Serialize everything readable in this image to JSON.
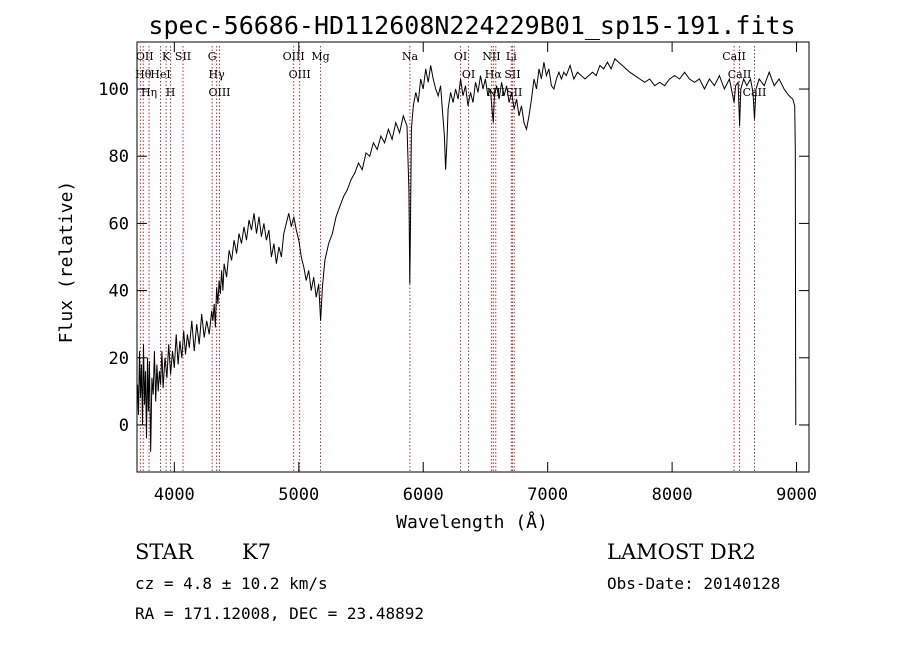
{
  "chart_data": {
    "type": "line",
    "title": "spec-56686-HD112608N224229B01_sp15-191.fits",
    "xlabel": "Wavelength (Å)",
    "ylabel": "Flux (relative)",
    "xlim": [
      3700,
      9100
    ],
    "ylim": [
      -14,
      114
    ],
    "xticks": [
      4000,
      5000,
      6000,
      7000,
      8000,
      9000
    ],
    "yticks": [
      0,
      20,
      40,
      60,
      80,
      100
    ],
    "line_color": "#000000",
    "marker_color": "#b03030",
    "series": [
      {
        "points": [
          [
            3705,
            12
          ],
          [
            3712,
            3
          ],
          [
            3720,
            22
          ],
          [
            3728,
            8
          ],
          [
            3736,
            18
          ],
          [
            3744,
            0
          ],
          [
            3752,
            24
          ],
          [
            3760,
            6
          ],
          [
            3768,
            16
          ],
          [
            3776,
            -4
          ],
          [
            3784,
            20
          ],
          [
            3792,
            4
          ],
          [
            3800,
            19
          ],
          [
            3810,
            -8
          ],
          [
            3820,
            14
          ],
          [
            3830,
            9
          ],
          [
            3840,
            22
          ],
          [
            3850,
            7
          ],
          [
            3860,
            18
          ],
          [
            3870,
            10
          ],
          [
            3880,
            16
          ],
          [
            3890,
            12
          ],
          [
            3900,
            22
          ],
          [
            3910,
            11
          ],
          [
            3925,
            20
          ],
          [
            3940,
            14
          ],
          [
            3955,
            24
          ],
          [
            3970,
            15
          ],
          [
            3985,
            22
          ],
          [
            4000,
            17
          ],
          [
            4015,
            27
          ],
          [
            4030,
            18
          ],
          [
            4045,
            25
          ],
          [
            4060,
            20
          ],
          [
            4075,
            28
          ],
          [
            4090,
            21
          ],
          [
            4105,
            27
          ],
          [
            4120,
            23
          ],
          [
            4140,
            31
          ],
          [
            4160,
            22
          ],
          [
            4180,
            30
          ],
          [
            4200,
            24
          ],
          [
            4220,
            33
          ],
          [
            4240,
            26
          ],
          [
            4260,
            31
          ],
          [
            4280,
            27
          ],
          [
            4300,
            34
          ],
          [
            4310,
            31
          ],
          [
            4320,
            36
          ],
          [
            4330,
            29
          ],
          [
            4340,
            41
          ],
          [
            4350,
            36
          ],
          [
            4360,
            43
          ],
          [
            4370,
            39
          ],
          [
            4380,
            46
          ],
          [
            4390,
            40
          ],
          [
            4400,
            48
          ],
          [
            4420,
            44
          ],
          [
            4440,
            52
          ],
          [
            4460,
            49
          ],
          [
            4480,
            55
          ],
          [
            4500,
            51
          ],
          [
            4520,
            57
          ],
          [
            4540,
            54
          ],
          [
            4560,
            59
          ],
          [
            4580,
            55
          ],
          [
            4600,
            61
          ],
          [
            4620,
            58
          ],
          [
            4640,
            63
          ],
          [
            4660,
            57
          ],
          [
            4680,
            62
          ],
          [
            4700,
            56
          ],
          [
            4720,
            60
          ],
          [
            4740,
            55
          ],
          [
            4760,
            58
          ],
          [
            4780,
            50
          ],
          [
            4800,
            54
          ],
          [
            4820,
            48
          ],
          [
            4840,
            53
          ],
          [
            4860,
            50
          ],
          [
            4880,
            57
          ],
          [
            4900,
            60
          ],
          [
            4920,
            63
          ],
          [
            4940,
            59
          ],
          [
            4960,
            62
          ],
          [
            4980,
            58
          ],
          [
            5000,
            55
          ],
          [
            5020,
            50
          ],
          [
            5040,
            47
          ],
          [
            5060,
            43
          ],
          [
            5080,
            46
          ],
          [
            5100,
            40
          ],
          [
            5120,
            44
          ],
          [
            5140,
            38
          ],
          [
            5160,
            42
          ],
          [
            5175,
            31
          ],
          [
            5190,
            41
          ],
          [
            5210,
            49
          ],
          [
            5240,
            54
          ],
          [
            5270,
            57
          ],
          [
            5300,
            62
          ],
          [
            5330,
            65
          ],
          [
            5360,
            68
          ],
          [
            5390,
            70
          ],
          [
            5420,
            73
          ],
          [
            5450,
            75
          ],
          [
            5480,
            78
          ],
          [
            5510,
            76
          ],
          [
            5540,
            81
          ],
          [
            5570,
            80
          ],
          [
            5600,
            84
          ],
          [
            5630,
            82
          ],
          [
            5660,
            86
          ],
          [
            5690,
            84
          ],
          [
            5720,
            88
          ],
          [
            5750,
            85
          ],
          [
            5780,
            90
          ],
          [
            5810,
            87
          ],
          [
            5840,
            92
          ],
          [
            5870,
            89
          ],
          [
            5885,
            70
          ],
          [
            5892,
            42
          ],
          [
            5898,
            60
          ],
          [
            5905,
            88
          ],
          [
            5920,
            95
          ],
          [
            5940,
            99
          ],
          [
            5960,
            96
          ],
          [
            5980,
            103
          ],
          [
            6000,
            100
          ],
          [
            6020,
            106
          ],
          [
            6040,
            102
          ],
          [
            6060,
            107
          ],
          [
            6080,
            103
          ],
          [
            6100,
            100
          ],
          [
            6120,
            98
          ],
          [
            6140,
            101
          ],
          [
            6160,
            91
          ],
          [
            6170,
            86
          ],
          [
            6180,
            76
          ],
          [
            6190,
            84
          ],
          [
            6200,
            94
          ],
          [
            6220,
            99
          ],
          [
            6240,
            96
          ],
          [
            6260,
            100
          ],
          [
            6280,
            97
          ],
          [
            6300,
            103
          ],
          [
            6320,
            98
          ],
          [
            6340,
            101
          ],
          [
            6360,
            95
          ],
          [
            6380,
            99
          ],
          [
            6400,
            96
          ],
          [
            6420,
            102
          ],
          [
            6440,
            99
          ],
          [
            6460,
            104
          ],
          [
            6480,
            100
          ],
          [
            6500,
            103
          ],
          [
            6520,
            98
          ],
          [
            6540,
            100
          ],
          [
            6555,
            93
          ],
          [
            6563,
            90
          ],
          [
            6572,
            98
          ],
          [
            6590,
            101
          ],
          [
            6610,
            97
          ],
          [
            6630,
            102
          ],
          [
            6650,
            98
          ],
          [
            6670,
            101
          ],
          [
            6690,
            96
          ],
          [
            6710,
            99
          ],
          [
            6730,
            94
          ],
          [
            6750,
            97
          ],
          [
            6770,
            92
          ],
          [
            6790,
            95
          ],
          [
            6810,
            90
          ],
          [
            6830,
            88
          ],
          [
            6850,
            92
          ],
          [
            6870,
            97
          ],
          [
            6890,
            103
          ],
          [
            6910,
            100
          ],
          [
            6930,
            106
          ],
          [
            6950,
            103
          ],
          [
            6970,
            108
          ],
          [
            6990,
            104
          ],
          [
            7010,
            106
          ],
          [
            7030,
            101
          ],
          [
            7050,
            100
          ],
          [
            7070,
            103
          ],
          [
            7090,
            105
          ],
          [
            7110,
            103
          ],
          [
            7130,
            105
          ],
          [
            7150,
            104
          ],
          [
            7180,
            107
          ],
          [
            7210,
            103
          ],
          [
            7240,
            105
          ],
          [
            7270,
            104
          ],
          [
            7300,
            103
          ],
          [
            7330,
            104
          ],
          [
            7360,
            105
          ],
          [
            7390,
            104
          ],
          [
            7420,
            107
          ],
          [
            7450,
            106
          ],
          [
            7480,
            108
          ],
          [
            7510,
            106
          ],
          [
            7540,
            109
          ],
          [
            7570,
            108
          ],
          [
            7600,
            107
          ],
          [
            7630,
            106
          ],
          [
            7660,
            105
          ],
          [
            7700,
            104
          ],
          [
            7740,
            103
          ],
          [
            7780,
            102
          ],
          [
            7820,
            103
          ],
          [
            7860,
            101
          ],
          [
            7900,
            102
          ],
          [
            7940,
            101
          ],
          [
            7980,
            103
          ],
          [
            8020,
            104
          ],
          [
            8060,
            103
          ],
          [
            8100,
            105
          ],
          [
            8140,
            103
          ],
          [
            8180,
            102
          ],
          [
            8220,
            103
          ],
          [
            8260,
            100
          ],
          [
            8300,
            103
          ],
          [
            8340,
            101
          ],
          [
            8380,
            104
          ],
          [
            8420,
            100
          ],
          [
            8460,
            103
          ],
          [
            8498,
            96
          ],
          [
            8510,
            101
          ],
          [
            8530,
            102
          ],
          [
            8542,
            89
          ],
          [
            8552,
            100
          ],
          [
            8575,
            103
          ],
          [
            8600,
            101
          ],
          [
            8630,
            103
          ],
          [
            8650,
            99
          ],
          [
            8662,
            91
          ],
          [
            8674,
            100
          ],
          [
            8700,
            103
          ],
          [
            8740,
            101
          ],
          [
            8780,
            105
          ],
          [
            8820,
            101
          ],
          [
            8860,
            103
          ],
          [
            8900,
            100
          ],
          [
            8940,
            98
          ],
          [
            8970,
            97
          ],
          [
            8985,
            95
          ],
          [
            8990,
            82
          ],
          [
            8992,
            20
          ],
          [
            8994,
            0
          ]
        ]
      }
    ],
    "lines": [
      {
        "x": 3750,
        "labels": [
          "Hθ"
        ]
      },
      {
        "x": 3727,
        "labels": [
          "OII"
        ]
      },
      {
        "x": 3797,
        "labels": [
          "Hη"
        ]
      },
      {
        "x": 3889,
        "labels": [
          "HeI"
        ]
      },
      {
        "x": 3934,
        "labels": [
          "K"
        ]
      },
      {
        "x": 3970,
        "labels": [
          "H"
        ]
      },
      {
        "x": 4070,
        "labels": [
          "SII"
        ]
      },
      {
        "x": 4304,
        "labels": [
          "G"
        ]
      },
      {
        "x": 4340,
        "labels": [
          "Hγ"
        ]
      },
      {
        "x": 4363,
        "labels": [
          "OIII"
        ]
      },
      {
        "x": 4959,
        "labels": [
          "OIII"
        ]
      },
      {
        "x": 5007,
        "labels": [
          "OIII"
        ]
      },
      {
        "x": 5175,
        "labels": [
          "Mg"
        ]
      },
      {
        "x": 5893,
        "labels": [
          "Na"
        ]
      },
      {
        "x": 6300,
        "labels": [
          "OI"
        ]
      },
      {
        "x": 6364,
        "labels": [
          "OI"
        ]
      },
      {
        "x": 6548,
        "labels": [
          "NII"
        ]
      },
      {
        "x": 6563,
        "labels": [
          "Hα"
        ]
      },
      {
        "x": 6583,
        "labels": [
          "NII"
        ]
      },
      {
        "x": 6708,
        "labels": [
          "Li"
        ]
      },
      {
        "x": 6717,
        "labels": [
          "SII"
        ]
      },
      {
        "x": 6731,
        "labels": [
          "SII"
        ]
      },
      {
        "x": 8498,
        "labels": [
          "CaII"
        ]
      },
      {
        "x": 8542,
        "labels": [
          "CaII"
        ]
      },
      {
        "x": 8662,
        "labels": [
          "CaII"
        ]
      }
    ]
  },
  "info": {
    "object_class": "STAR",
    "subclass": "K7",
    "cz": "cz = 4.8 ± 10.2 km/s",
    "coords": "RA = 171.12008, DEC =  23.48892",
    "survey": "LAMOST DR2",
    "obs_date": "Obs-Date: 20140128"
  }
}
